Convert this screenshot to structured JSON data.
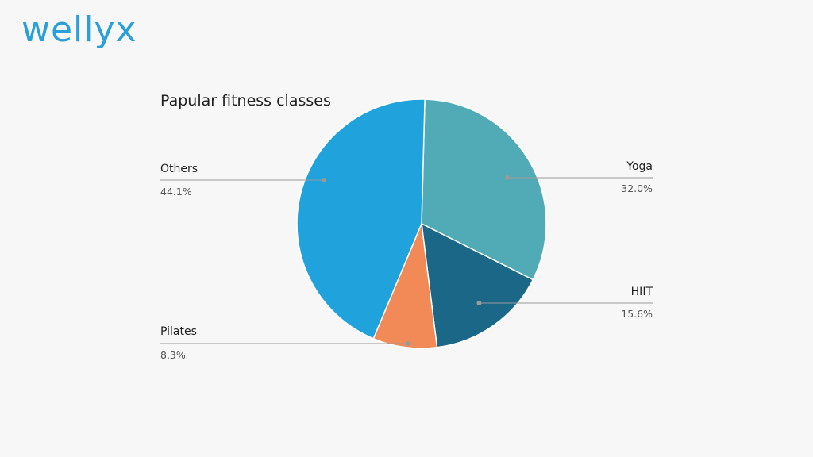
{
  "brand": {
    "logo_text": "wellyx",
    "logo_color": "#2b9fd9"
  },
  "chart_data": {
    "type": "pie",
    "title": "Papular fitness classes",
    "start_angle_deg": 1.5,
    "slices": [
      {
        "label": "Yoga",
        "value": 32.0,
        "value_label": "32.0%",
        "color": "#51abb6"
      },
      {
        "label": "HIIT",
        "value": 15.6,
        "value_label": "15.6%",
        "color": "#1b6788"
      },
      {
        "label": "Pilates",
        "value": 8.3,
        "value_label": "8.3%",
        "color": "#f18a57"
      },
      {
        "label": "Others",
        "value": 44.1,
        "value_label": "44.1%",
        "color": "#20a2dc"
      }
    ],
    "leader_line_color": "#9a9a9a"
  }
}
